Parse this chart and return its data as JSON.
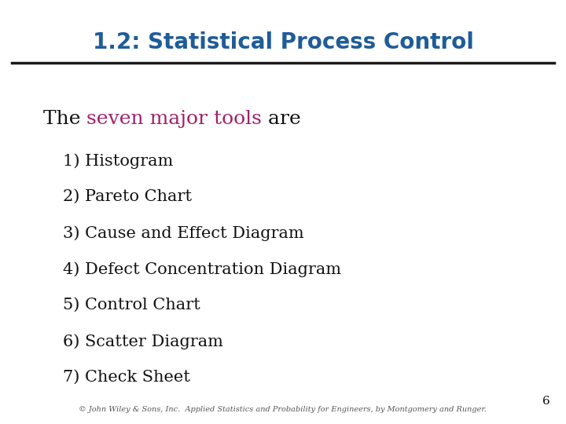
{
  "title": "1.2: Statistical Process Control",
  "title_color": "#1F5C99",
  "title_fontsize": 20,
  "line_color": "#1a1a1a",
  "bg_color": "#ffffff",
  "intro_text_black1": "The ",
  "intro_text_colored": "seven major tools",
  "intro_text_colored_color": "#A0216A",
  "intro_text_black2": " are",
  "intro_fontsize": 18,
  "items": [
    "1) Histogram",
    "2) Pareto Chart",
    "3) Cause and Effect Diagram",
    "4) Defect Concentration Diagram",
    "5) Control Chart",
    "6) Scatter Diagram",
    "7) Check Sheet"
  ],
  "item_fontsize": 15,
  "item_color": "#111111",
  "page_number": "6",
  "footer_text": "© John Wiley & Sons, Inc.  Applied Statistics and Probability for Engineers, by Montgomery and Runger.",
  "footer_fontsize": 7
}
